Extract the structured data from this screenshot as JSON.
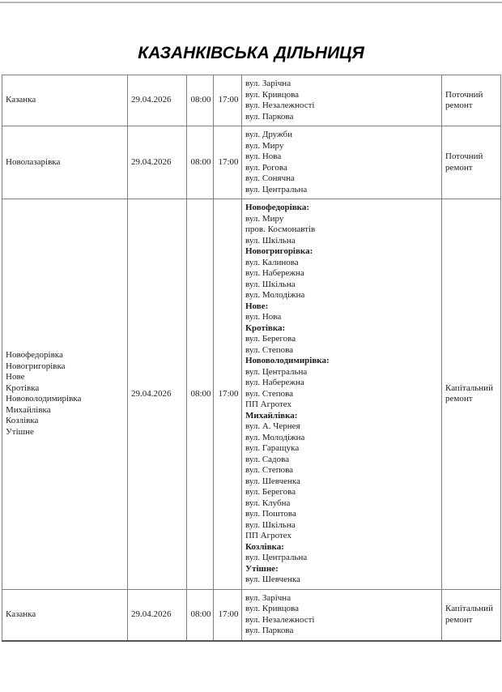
{
  "page": {
    "title": "КАЗАНКІВСЬКА ДІЛЬНИЦЯ"
  },
  "schedule": {
    "rows": [
      {
        "settlements": [
          "Казанка"
        ],
        "date": "29.04.2026",
        "time_start": "08:00",
        "time_end": "17:00",
        "streets": [
          {
            "text": "вул. Зарічна",
            "bold": false
          },
          {
            "text": "вул. Кривцова",
            "bold": false
          },
          {
            "text": "вул. Незалежності",
            "bold": false
          },
          {
            "text": "вул. Паркова",
            "bold": false
          }
        ],
        "repair_type": "Поточний ремонт"
      },
      {
        "settlements": [
          "Новолазарівка"
        ],
        "date": "29.04.2026",
        "time_start": "08:00",
        "time_end": "17:00",
        "streets": [
          {
            "text": "вул. Дружби",
            "bold": false
          },
          {
            "text": "вул. Миру",
            "bold": false
          },
          {
            "text": "вул. Нова",
            "bold": false
          },
          {
            "text": "вул. Рогова",
            "bold": false
          },
          {
            "text": "вул. Сонячна",
            "bold": false
          },
          {
            "text": "вул. Центральна",
            "bold": false
          }
        ],
        "repair_type": "Поточний ремонт"
      },
      {
        "settlements": [
          "Новофедорівка",
          "Новогригорівка",
          "Нове",
          "Кротівка",
          "Нововолодимирівка",
          "Михайлівка",
          "Козлівка",
          "Утішне"
        ],
        "date": "29.04.2026",
        "time_start": "08:00",
        "time_end": "17:00",
        "streets": [
          {
            "text": "Новофедорівка:",
            "bold": true
          },
          {
            "text": "вул. Миру",
            "bold": false
          },
          {
            "text": "пров. Космонавтів",
            "bold": false
          },
          {
            "text": "вул. Шкільна",
            "bold": false
          },
          {
            "text": "Новогригорівка:",
            "bold": true
          },
          {
            "text": "вул. Калинова",
            "bold": false
          },
          {
            "text": "вул. Набережна",
            "bold": false
          },
          {
            "text": "вул. Шкільна",
            "bold": false
          },
          {
            "text": "вул. Молодіжна",
            "bold": false
          },
          {
            "text": "Нове:",
            "bold": true
          },
          {
            "text": "вул. Нова",
            "bold": false
          },
          {
            "text": "Кротівка:",
            "bold": true
          },
          {
            "text": "вул. Берегова",
            "bold": false
          },
          {
            "text": "вул. Степова",
            "bold": false
          },
          {
            "text": "Нововолодимирівка:",
            "bold": true
          },
          {
            "text": "вул. Центральна",
            "bold": false
          },
          {
            "text": "вул. Набережна",
            "bold": false
          },
          {
            "text": "вул. Степова",
            "bold": false
          },
          {
            "text": "ПП Агротех",
            "bold": false
          },
          {
            "text": "Михайлівка:",
            "bold": true
          },
          {
            "text": "вул. А. Чернея",
            "bold": false
          },
          {
            "text": "вул. Молодіжна",
            "bold": false
          },
          {
            "text": "вул. Гаращука",
            "bold": false
          },
          {
            "text": "вул. Садова",
            "bold": false
          },
          {
            "text": "вул. Степова",
            "bold": false
          },
          {
            "text": "вул. Шевченка",
            "bold": false
          },
          {
            "text": "вул. Берегова",
            "bold": false
          },
          {
            "text": "вул. Клубна",
            "bold": false
          },
          {
            "text": "вул. Поштова",
            "bold": false
          },
          {
            "text": "вул. Шкільна",
            "bold": false
          },
          {
            "text": "ПП Агротех",
            "bold": false
          },
          {
            "text": "Козлівка:",
            "bold": true
          },
          {
            "text": "вул. Центральна",
            "bold": false
          },
          {
            "text": "Утішне:",
            "bold": true
          },
          {
            "text": "вул. Шевченка",
            "bold": false
          }
        ],
        "repair_type": "Капітальний ремонт"
      },
      {
        "settlements": [
          "Казанка"
        ],
        "date": "29.04.2026",
        "time_start": "08:00",
        "time_end": "17:00",
        "streets": [
          {
            "text": "вул. Зарічна",
            "bold": false
          },
          {
            "text": "вул. Кривцова",
            "bold": false
          },
          {
            "text": "вул. Незалежності",
            "bold": false
          },
          {
            "text": "вул. Паркова",
            "bold": false
          }
        ],
        "repair_type": "Капітальний ремонт"
      }
    ]
  }
}
